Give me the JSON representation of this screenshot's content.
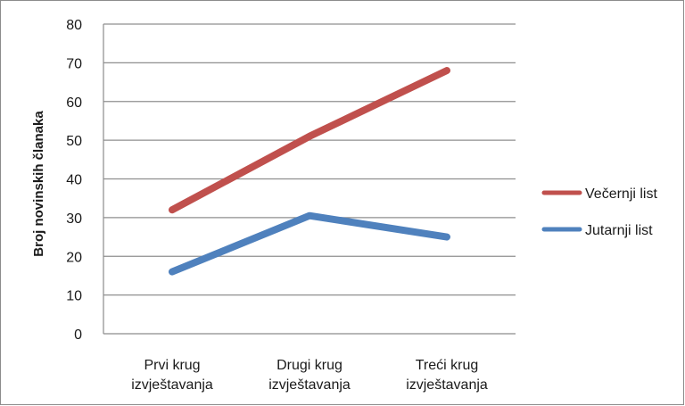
{
  "chart_data": {
    "type": "line",
    "categories": [
      [
        "Prvi krug",
        "izvještavanja"
      ],
      [
        "Drugi krug",
        "izvještavanja"
      ],
      [
        "Treći krug",
        "izvještavanja"
      ]
    ],
    "series": [
      {
        "name": "Večernji list",
        "values": [
          32,
          51,
          68
        ],
        "color": "#c0504d"
      },
      {
        "name": "Jutarnji list",
        "values": [
          16,
          30.5,
          25
        ],
        "color": "#4f81bd"
      }
    ],
    "ylabel": "Broj novinskih članaka",
    "xlabel": "",
    "ylim": [
      0,
      80
    ],
    "yticks": [
      "0",
      "10",
      "20",
      "30",
      "40",
      "50",
      "60",
      "70",
      "80"
    ],
    "grid": true,
    "legend": "right"
  }
}
